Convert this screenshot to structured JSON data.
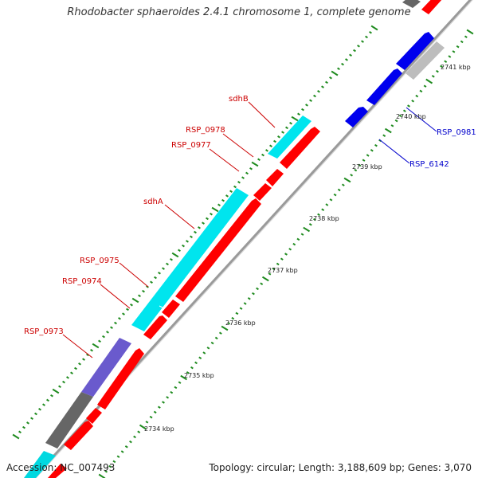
{
  "title": "Rhodobacter sphaeroides 2.4.1 chromosome 1, complete genome",
  "accession": "Accession: NC_007493",
  "topology": "Topology: circular; Length: 3,188,609 bp; Genes: 3,070",
  "colors": {
    "backbone": "#8a8a8a",
    "forward_cds": "#ff0000",
    "reverse_cds": "#0000ff",
    "cyan_feature": "#00e5ee",
    "purple_feature": "#6a5acd",
    "dark_feature": "#555555",
    "light_feature": "#bfbfbf",
    "tick_major": "#006400",
    "tick_minor": "#228b22",
    "label_red": "#cc0000",
    "label_blue": "#0000cc"
  },
  "scale_labels": [
    "2734 kbp",
    "2735 kbp",
    "2736 kbp",
    "2737 kbp",
    "2738 kbp",
    "2739 kbp",
    "2740 kbp",
    "2741 kbp"
  ],
  "gene_labels": [
    {
      "text": "sdhB",
      "color": "red"
    },
    {
      "text": "RSP_0978",
      "color": "red"
    },
    {
      "text": "RSP_0977",
      "color": "red"
    },
    {
      "text": "sdhA",
      "color": "red"
    },
    {
      "text": "RSP_0975",
      "color": "red"
    },
    {
      "text": "RSP_0974",
      "color": "red"
    },
    {
      "text": "RSP_0973",
      "color": "red"
    },
    {
      "text": "RSP_0981",
      "color": "blue"
    },
    {
      "text": "RSP_6142",
      "color": "blue"
    }
  ]
}
